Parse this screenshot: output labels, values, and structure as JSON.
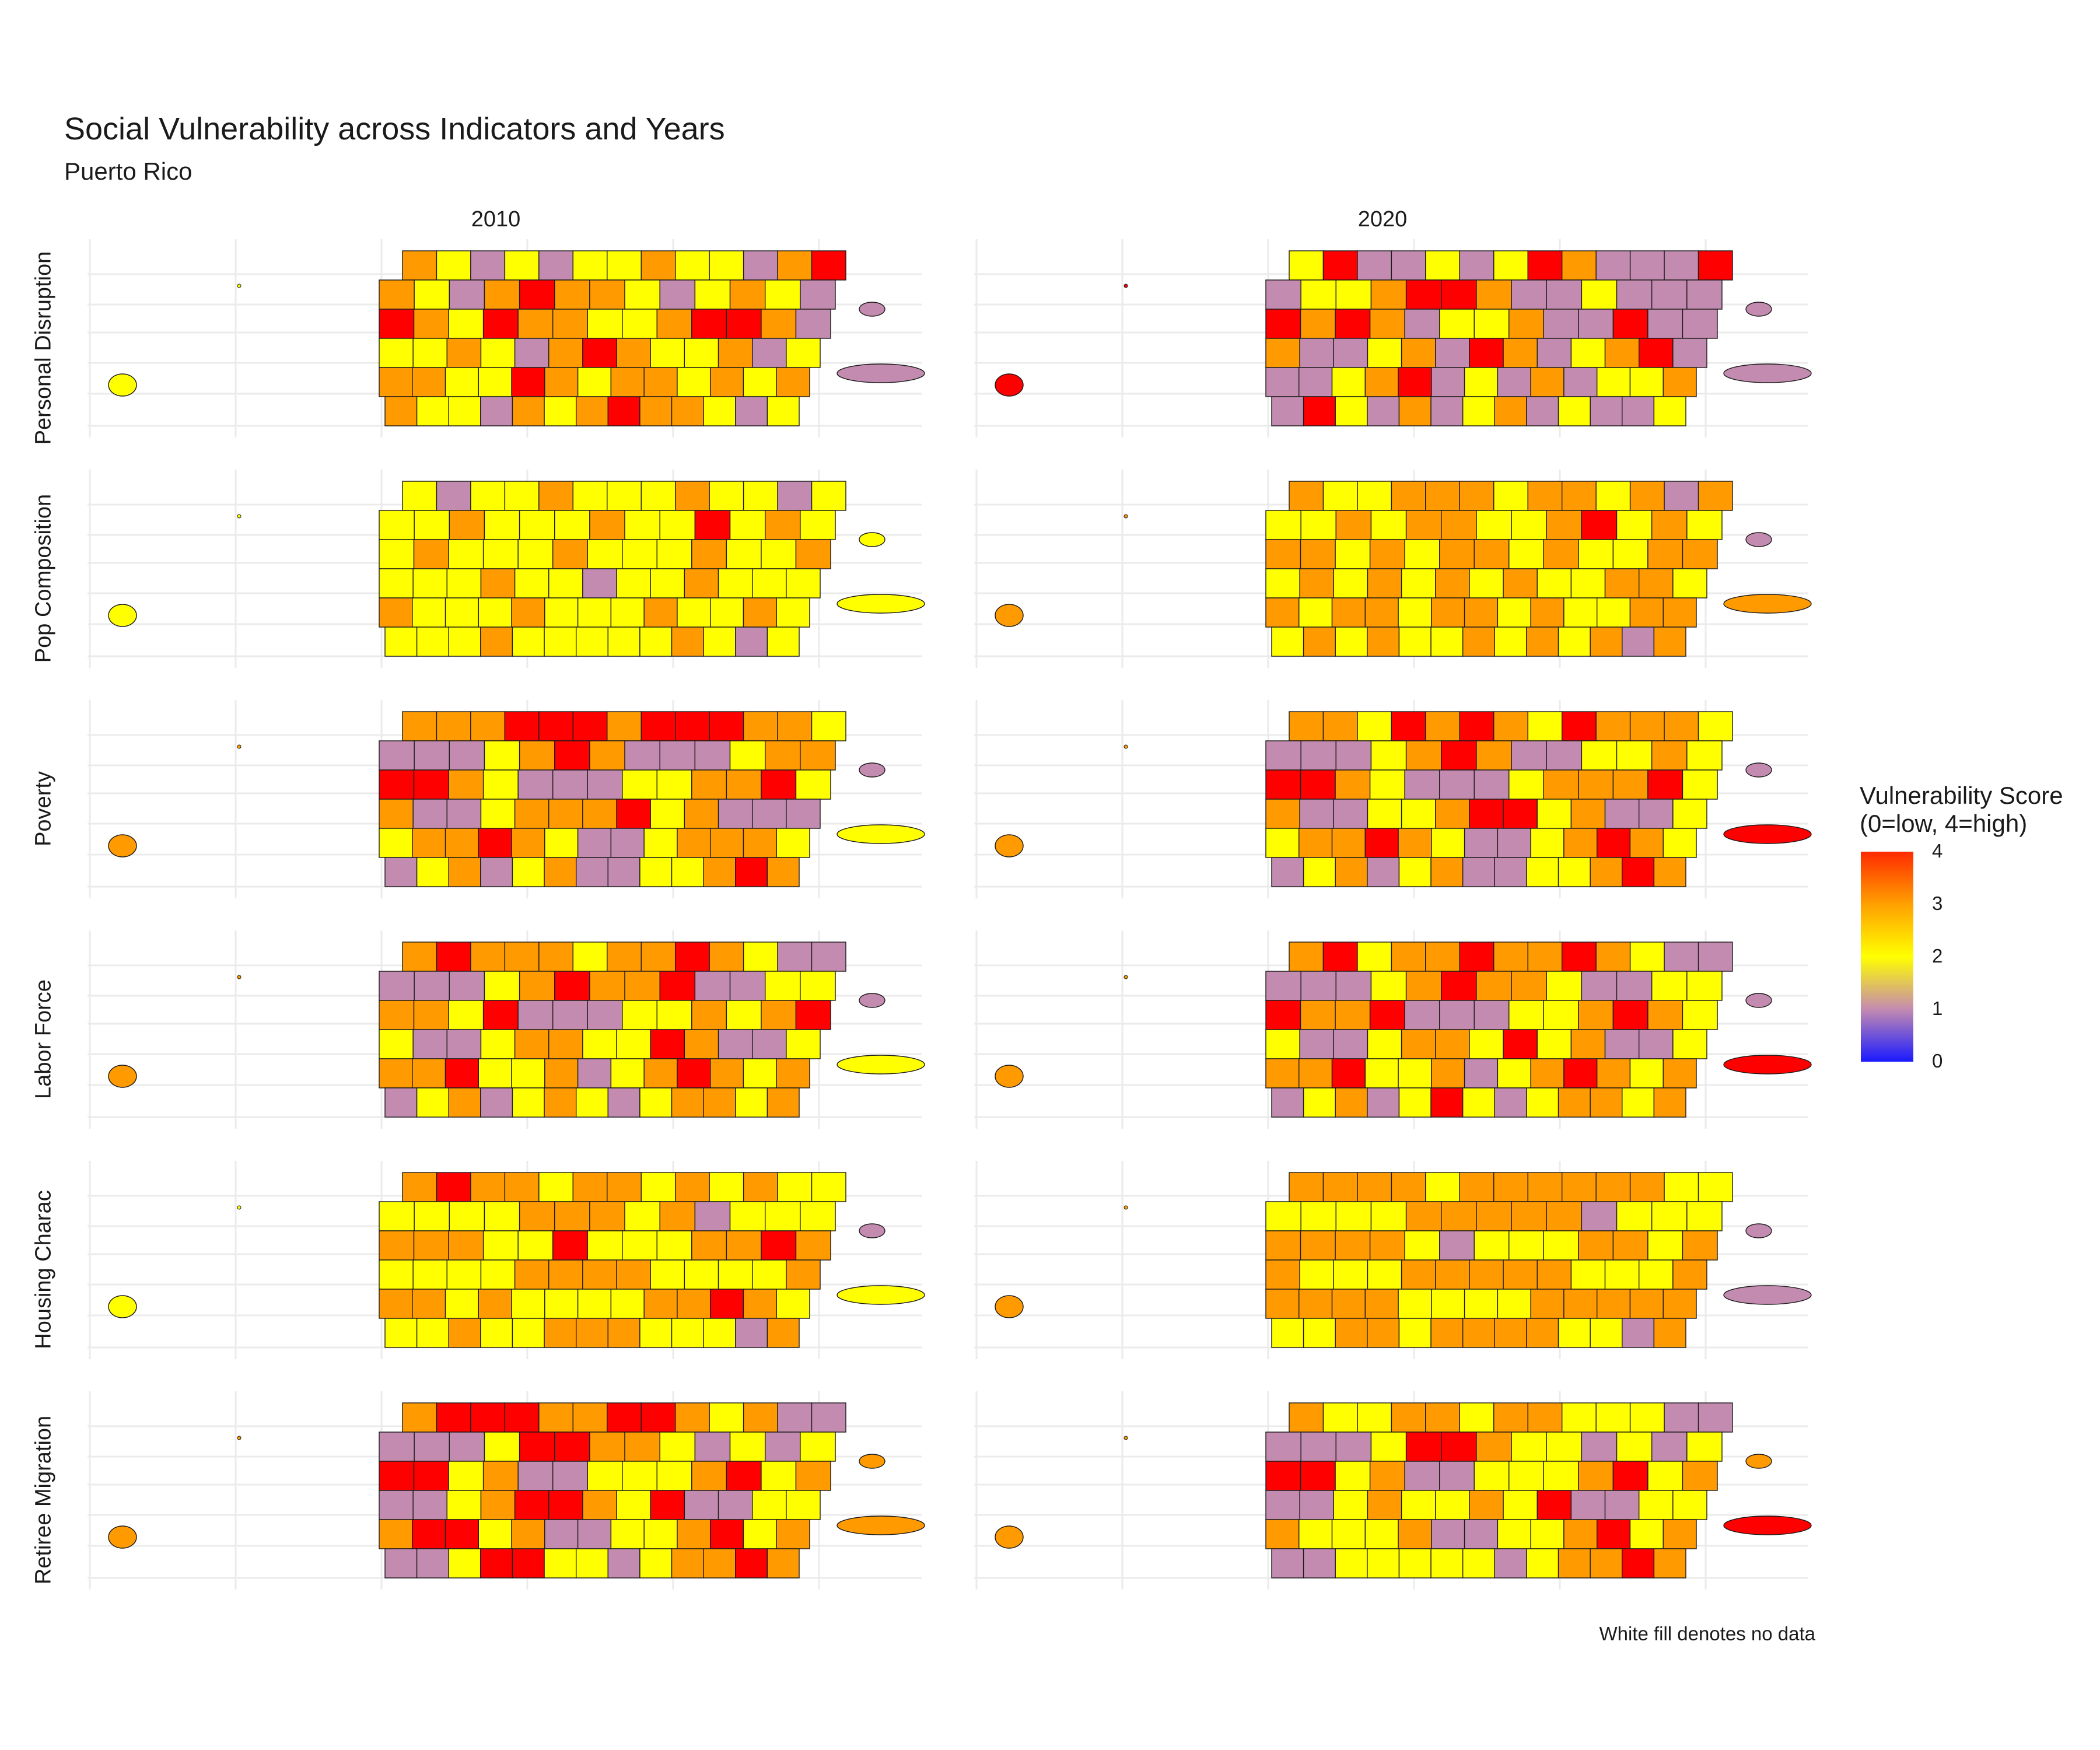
{
  "title": "Social Vulnerability across Indicators and Years",
  "subtitle": "Puerto Rico",
  "columns": [
    "2010",
    "2020"
  ],
  "rows": [
    "Personal Disruption",
    "Pop Composition",
    "Poverty",
    "Labor Force",
    "Housing Charac",
    "Retiree Migration"
  ],
  "legend": {
    "title_line1": "Vulnerability Score",
    "title_line2": "(0=low, 4=high)",
    "ticks": [
      "4",
      "3",
      "2",
      "1",
      "0"
    ],
    "colors": {
      "0": "#1a1aff",
      "1": "#c48bb0",
      "2": "#ffff00",
      "3": "#ff9a00",
      "4": "#ff0000"
    }
  },
  "caption": "White fill denotes no data",
  "chart_data": {
    "type": "choropleth",
    "region": "Puerto Rico",
    "score_range": [
      0,
      4
    ],
    "panels": [
      {
        "indicator": "Personal Disruption",
        "year": "2010",
        "island_scores": [
          3,
          2,
          1,
          2,
          1,
          2,
          2,
          3,
          2,
          2,
          1,
          3,
          4,
          3,
          2,
          1,
          3,
          4,
          3,
          3,
          2,
          1,
          2,
          3,
          2,
          1,
          4,
          3,
          2,
          4,
          3,
          3,
          2,
          2,
          3,
          4,
          4,
          3,
          1,
          2,
          2,
          3,
          2,
          1,
          3,
          4,
          3,
          2,
          2,
          3,
          1,
          2,
          3,
          3,
          2,
          2,
          4,
          3,
          2,
          3,
          3,
          2,
          3,
          2,
          3,
          3,
          2,
          2,
          1,
          3,
          2,
          3,
          4,
          3,
          3,
          2,
          1,
          2
        ],
        "vieques": 1,
        "culebra": 1,
        "mona": 2
      },
      {
        "indicator": "Personal Disruption",
        "year": "2020",
        "island_scores": [
          2,
          4,
          1,
          1,
          2,
          1,
          2,
          4,
          3,
          1,
          1,
          1,
          4,
          1,
          2,
          2,
          3,
          4,
          4,
          3,
          1,
          1,
          2,
          1,
          1,
          1,
          4,
          3,
          4,
          3,
          1,
          2,
          2,
          3,
          1,
          1,
          4,
          1,
          1,
          3,
          1,
          1,
          2,
          3,
          1,
          4,
          3,
          1,
          2,
          3,
          4,
          1,
          1,
          1,
          2,
          3,
          4,
          1,
          2,
          1,
          3,
          1,
          2,
          2,
          3,
          1,
          4,
          2,
          1,
          3,
          1,
          2,
          3,
          1,
          2,
          1,
          1,
          2
        ],
        "vieques": 1,
        "culebra": 1,
        "mona": 4
      },
      {
        "indicator": "Pop Composition",
        "year": "2010",
        "island_scores": [
          2,
          1,
          2,
          2,
          3,
          2,
          2,
          2,
          3,
          2,
          2,
          1,
          2,
          2,
          2,
          3,
          2,
          2,
          2,
          3,
          2,
          2,
          4,
          2,
          3,
          2,
          2,
          3,
          2,
          2,
          2,
          3,
          2,
          2,
          2,
          3,
          2,
          2,
          3,
          2,
          2,
          2,
          3,
          2,
          2,
          1,
          2,
          2,
          3,
          2,
          2,
          2,
          3,
          2,
          2,
          2,
          3,
          2,
          2,
          2,
          3,
          2,
          2,
          3,
          2,
          2,
          2,
          2,
          3,
          2,
          2,
          2,
          2,
          2,
          3,
          2,
          1,
          2
        ],
        "vieques": 2,
        "culebra": 2,
        "mona": 2
      },
      {
        "indicator": "Pop Composition",
        "year": "2020",
        "island_scores": [
          3,
          2,
          2,
          3,
          3,
          3,
          2,
          3,
          3,
          2,
          3,
          1,
          3,
          2,
          2,
          3,
          2,
          3,
          3,
          2,
          2,
          3,
          4,
          2,
          3,
          2,
          3,
          3,
          2,
          3,
          2,
          3,
          3,
          2,
          3,
          2,
          2,
          3,
          3,
          2,
          3,
          2,
          3,
          2,
          3,
          2,
          3,
          2,
          2,
          3,
          3,
          2,
          3,
          2,
          3,
          3,
          2,
          3,
          3,
          2,
          3,
          2,
          2,
          3,
          3,
          2,
          3,
          2,
          3,
          2,
          2,
          3,
          2,
          3,
          2,
          3,
          1,
          3
        ],
        "vieques": 3,
        "culebra": 1,
        "mona": 3
      },
      {
        "indicator": "Poverty",
        "year": "2010",
        "island_scores": [
          3,
          3,
          3,
          4,
          4,
          4,
          3,
          4,
          4,
          4,
          3,
          3,
          2,
          1,
          1,
          1,
          2,
          3,
          4,
          3,
          1,
          1,
          1,
          2,
          3,
          3,
          4,
          4,
          3,
          2,
          1,
          1,
          1,
          2,
          2,
          3,
          3,
          4,
          2,
          3,
          1,
          1,
          2,
          3,
          3,
          3,
          4,
          2,
          3,
          1,
          1,
          1,
          2,
          3,
          3,
          4,
          3,
          2,
          1,
          1,
          2,
          3,
          3,
          3,
          2,
          1,
          2,
          3,
          1,
          2,
          3,
          1,
          1,
          2,
          2,
          3,
          4,
          3
        ],
        "vieques": 2,
        "culebra": 1,
        "mona": 3
      },
      {
        "indicator": "Poverty",
        "year": "2020",
        "island_scores": [
          3,
          3,
          2,
          4,
          3,
          4,
          3,
          2,
          4,
          3,
          3,
          3,
          2,
          1,
          1,
          1,
          2,
          3,
          4,
          3,
          1,
          1,
          2,
          2,
          3,
          2,
          4,
          4,
          3,
          2,
          1,
          1,
          1,
          2,
          3,
          3,
          3,
          4,
          2,
          3,
          1,
          1,
          2,
          2,
          3,
          4,
          4,
          2,
          3,
          1,
          1,
          2,
          2,
          3,
          3,
          4,
          3,
          2,
          1,
          1,
          2,
          3,
          4,
          3,
          2,
          1,
          2,
          3,
          1,
          2,
          3,
          1,
          1,
          2,
          2,
          3,
          4,
          3
        ],
        "vieques": 4,
        "culebra": 1,
        "mona": 3
      },
      {
        "indicator": "Labor Force",
        "year": "2010",
        "island_scores": [
          3,
          4,
          3,
          3,
          3,
          2,
          3,
          3,
          4,
          3,
          2,
          1,
          1,
          1,
          1,
          1,
          2,
          3,
          4,
          3,
          3,
          4,
          1,
          1,
          2,
          2,
          3,
          3,
          2,
          4,
          1,
          1,
          1,
          2,
          2,
          3,
          2,
          3,
          4,
          2,
          1,
          1,
          2,
          3,
          3,
          2,
          2,
          4,
          3,
          1,
          1,
          2,
          3,
          3,
          4,
          2,
          2,
          3,
          1,
          2,
          3,
          4,
          3,
          2,
          3,
          1,
          2,
          3,
          1,
          2,
          3,
          2,
          1,
          2,
          3,
          3,
          2,
          3
        ],
        "vieques": 2,
        "culebra": 1,
        "mona": 3
      },
      {
        "indicator": "Labor Force",
        "year": "2020",
        "island_scores": [
          3,
          4,
          2,
          3,
          3,
          4,
          3,
          3,
          4,
          3,
          2,
          1,
          1,
          1,
          1,
          1,
          2,
          3,
          4,
          3,
          3,
          2,
          1,
          1,
          2,
          2,
          4,
          3,
          3,
          4,
          1,
          1,
          1,
          2,
          2,
          3,
          4,
          3,
          2,
          2,
          1,
          1,
          2,
          3,
          3,
          2,
          4,
          2,
          3,
          1,
          1,
          2,
          3,
          3,
          4,
          2,
          2,
          3,
          1,
          2,
          3,
          4,
          3,
          2,
          3,
          1,
          2,
          3,
          1,
          2,
          4,
          2,
          1,
          2,
          3,
          3,
          2,
          3
        ],
        "vieques": 4,
        "culebra": 1,
        "mona": 3
      },
      {
        "indicator": "Housing Charac",
        "year": "2010",
        "island_scores": [
          3,
          4,
          3,
          3,
          2,
          3,
          3,
          2,
          3,
          2,
          3,
          2,
          2,
          2,
          2,
          2,
          2,
          3,
          3,
          3,
          2,
          3,
          1,
          2,
          2,
          2,
          3,
          3,
          3,
          2,
          2,
          4,
          2,
          2,
          2,
          3,
          3,
          4,
          3,
          2,
          2,
          2,
          2,
          3,
          3,
          3,
          3,
          2,
          2,
          2,
          2,
          3,
          3,
          3,
          2,
          3,
          2,
          2,
          2,
          2,
          3,
          3,
          4,
          3,
          2,
          2,
          2,
          3,
          2,
          2,
          3,
          3,
          3,
          2,
          2,
          2,
          1,
          3
        ],
        "vieques": 2,
        "culebra": 1,
        "mona": 2
      },
      {
        "indicator": "Housing Charac",
        "year": "2020",
        "island_scores": [
          3,
          3,
          3,
          3,
          2,
          3,
          3,
          3,
          3,
          3,
          3,
          2,
          2,
          2,
          2,
          2,
          2,
          3,
          3,
          3,
          3,
          3,
          1,
          2,
          2,
          2,
          3,
          3,
          3,
          3,
          2,
          1,
          2,
          2,
          2,
          3,
          3,
          2,
          3,
          3,
          2,
          2,
          2,
          3,
          3,
          3,
          3,
          3,
          2,
          2,
          2,
          3,
          3,
          3,
          3,
          3,
          2,
          2,
          2,
          2,
          3,
          3,
          3,
          3,
          3,
          2,
          2,
          3,
          3,
          2,
          3,
          3,
          3,
          3,
          2,
          2,
          1,
          3
        ],
        "vieques": 1,
        "culebra": 1,
        "mona": 3
      },
      {
        "indicator": "Retiree Migration",
        "year": "2010",
        "island_scores": [
          3,
          4,
          4,
          4,
          3,
          3,
          4,
          4,
          3,
          2,
          3,
          1,
          1,
          1,
          1,
          1,
          2,
          4,
          4,
          3,
          3,
          2,
          1,
          2,
          1,
          2,
          4,
          4,
          2,
          3,
          1,
          1,
          2,
          2,
          2,
          3,
          4,
          2,
          3,
          1,
          1,
          2,
          3,
          4,
          4,
          3,
          2,
          4,
          1,
          1,
          2,
          2,
          3,
          4,
          4,
          2,
          3,
          1,
          1,
          2,
          2,
          3,
          4,
          2,
          3,
          1,
          1,
          2,
          4,
          4,
          2,
          2,
          1,
          2,
          3,
          3,
          4,
          3
        ],
        "vieques": 3,
        "culebra": 3,
        "mona": 3
      },
      {
        "indicator": "Retiree Migration",
        "year": "2020",
        "island_scores": [
          3,
          2,
          2,
          3,
          3,
          2,
          3,
          3,
          2,
          2,
          2,
          1,
          1,
          1,
          1,
          1,
          2,
          4,
          4,
          3,
          2,
          2,
          1,
          2,
          1,
          2,
          4,
          4,
          2,
          3,
          1,
          1,
          2,
          2,
          2,
          3,
          4,
          2,
          3,
          1,
          1,
          2,
          3,
          2,
          2,
          3,
          2,
          4,
          1,
          1,
          2,
          2,
          3,
          2,
          2,
          2,
          3,
          1,
          1,
          2,
          2,
          3,
          4,
          2,
          3,
          1,
          1,
          2,
          2,
          2,
          2,
          2,
          1,
          2,
          3,
          3,
          4,
          3
        ],
        "vieques": 4,
        "culebra": 3,
        "mona": 3
      }
    ]
  }
}
